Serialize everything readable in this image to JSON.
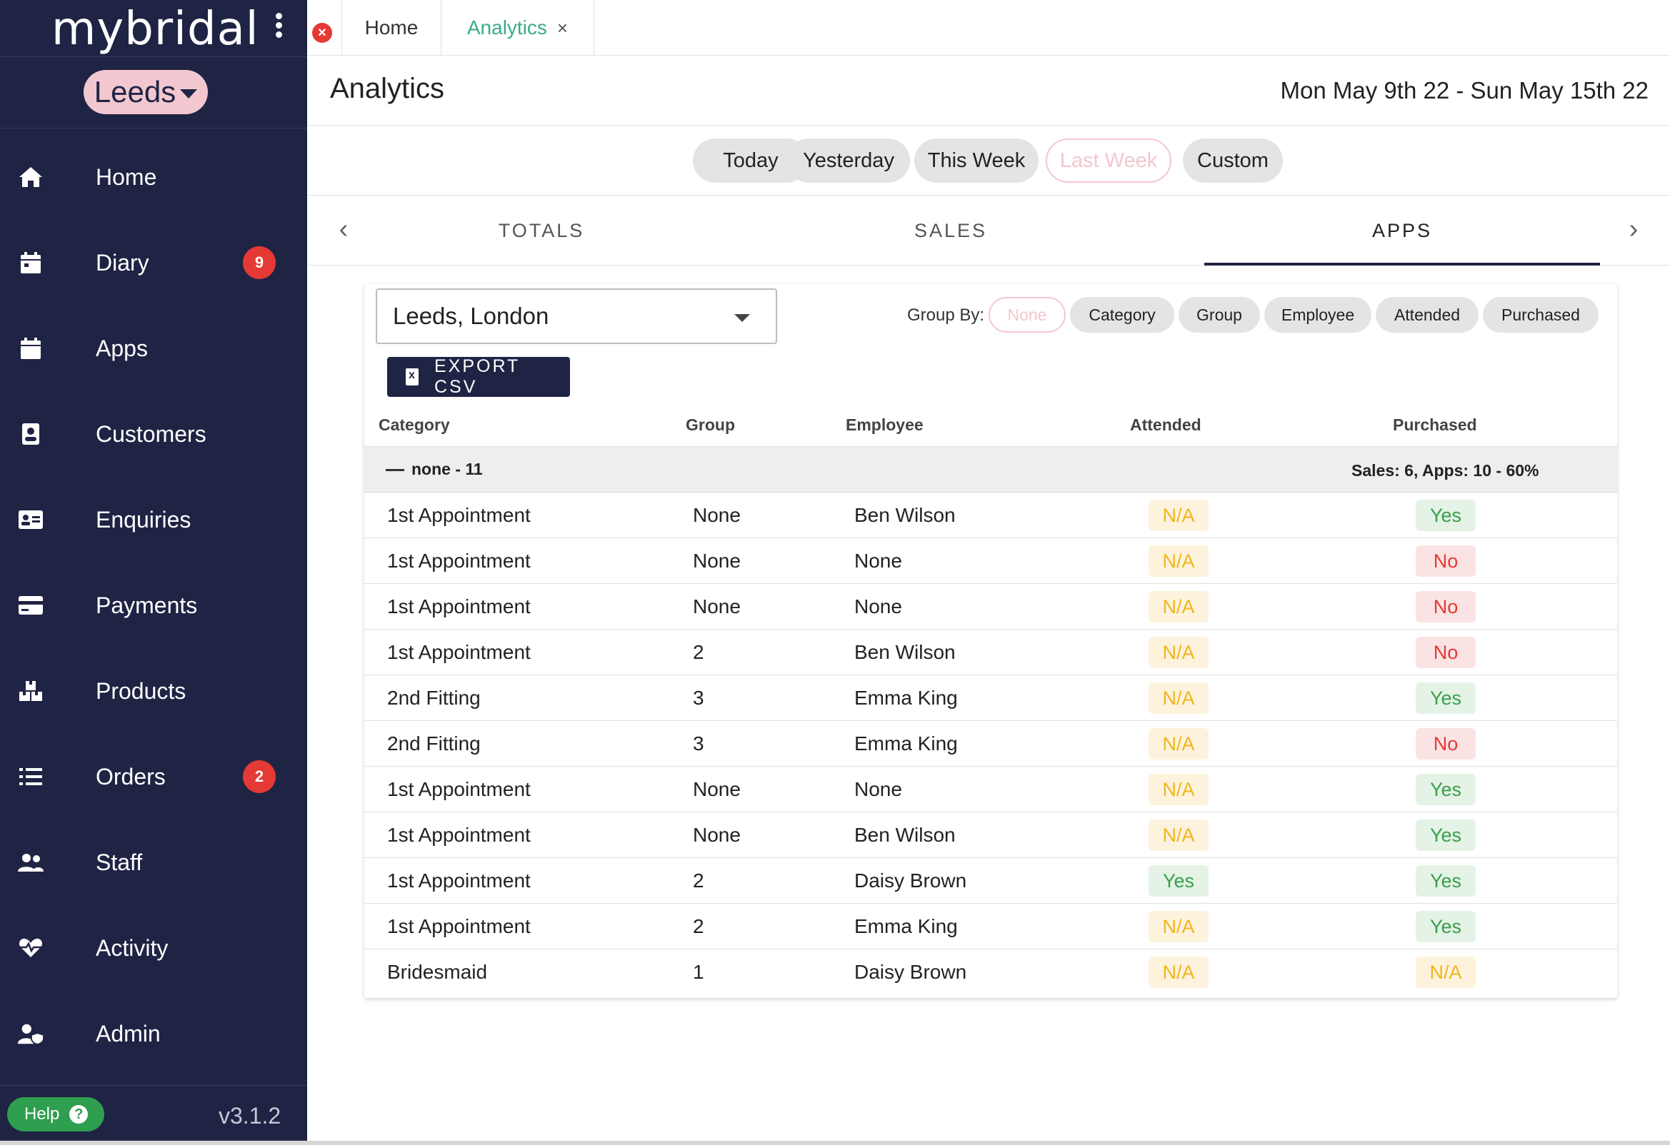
{
  "sidebar": {
    "brand": "mybridal",
    "store": "Leeds",
    "items": [
      {
        "label": "Home",
        "icon": "home-icon",
        "badge": ""
      },
      {
        "label": "Diary",
        "icon": "calendar-icon",
        "badge": "9"
      },
      {
        "label": "Apps",
        "icon": "calendar-icon",
        "badge": ""
      },
      {
        "label": "Customers",
        "icon": "contact-book-icon",
        "badge": ""
      },
      {
        "label": "Enquiries",
        "icon": "id-card-icon",
        "badge": ""
      },
      {
        "label": "Payments",
        "icon": "credit-card-icon",
        "badge": ""
      },
      {
        "label": "Products",
        "icon": "boxes-icon",
        "badge": ""
      },
      {
        "label": "Orders",
        "icon": "list-icon",
        "badge": "2"
      },
      {
        "label": "Staff",
        "icon": "users-icon",
        "badge": ""
      },
      {
        "label": "Activity",
        "icon": "heartbeat-icon",
        "badge": ""
      },
      {
        "label": "Admin",
        "icon": "user-shield-icon",
        "badge": ""
      }
    ],
    "help_label": "Help",
    "version": "v3.1.2"
  },
  "tabs": {
    "home": "Home",
    "analytics": "Analytics",
    "close": "×"
  },
  "header": {
    "title": "Analytics",
    "date_range": "Mon May 9th 22 - Sun May 15th 22"
  },
  "ranges": [
    "Today",
    "Yesterday",
    "This Week",
    "Last Week",
    "Custom"
  ],
  "section_tabs": [
    "TOTALS",
    "SALES",
    "APPS"
  ],
  "filters": {
    "location": "Leeds, London",
    "export_label": "EXPORT CSV",
    "group_by_label": "Group By:",
    "group_by_options": [
      "None",
      "Category",
      "Group",
      "Employee",
      "Attended",
      "Purchased"
    ]
  },
  "table": {
    "columns": [
      "Category",
      "Group",
      "Employee",
      "Attended",
      "Purchased"
    ],
    "group_label": "none - 11",
    "group_summary": "Sales: 6, Apps: 10 - 60%",
    "rows": [
      {
        "category": "1st Appointment",
        "group": "None",
        "employee": "Ben Wilson",
        "attended": "N/A",
        "purchased": "Yes"
      },
      {
        "category": "1st Appointment",
        "group": "None",
        "employee": "None",
        "attended": "N/A",
        "purchased": "No"
      },
      {
        "category": "1st Appointment",
        "group": "None",
        "employee": "None",
        "attended": "N/A",
        "purchased": "No"
      },
      {
        "category": "1st Appointment",
        "group": "2",
        "employee": "Ben Wilson",
        "attended": "N/A",
        "purchased": "No"
      },
      {
        "category": "2nd Fitting",
        "group": "3",
        "employee": "Emma King",
        "attended": "N/A",
        "purchased": "Yes"
      },
      {
        "category": "2nd Fitting",
        "group": "3",
        "employee": "Emma King",
        "attended": "N/A",
        "purchased": "No"
      },
      {
        "category": "1st Appointment",
        "group": "None",
        "employee": "None",
        "attended": "N/A",
        "purchased": "Yes"
      },
      {
        "category": "1st Appointment",
        "group": "None",
        "employee": "Ben Wilson",
        "attended": "N/A",
        "purchased": "Yes"
      },
      {
        "category": "1st Appointment",
        "group": "2",
        "employee": "Daisy Brown",
        "attended": "Yes",
        "purchased": "Yes"
      },
      {
        "category": "1st Appointment",
        "group": "2",
        "employee": "Emma King",
        "attended": "N/A",
        "purchased": "Yes"
      },
      {
        "category": "Bridesmaid",
        "group": "1",
        "employee": "Daisy Brown",
        "attended": "N/A",
        "purchased": "N/A"
      }
    ]
  }
}
